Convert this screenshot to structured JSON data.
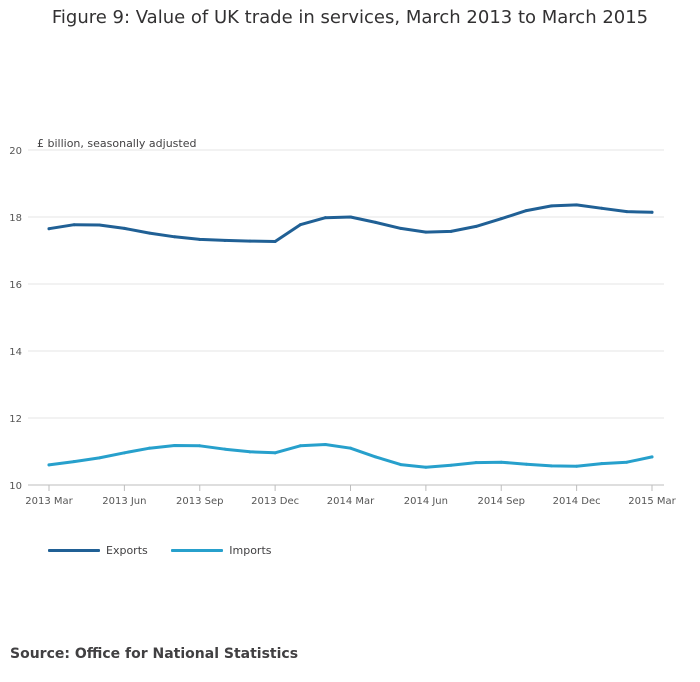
{
  "title": "Figure 9: Value of UK trade in services, March 2013 to March 2015",
  "source": "Source: Office for National Statistics",
  "chart_data": {
    "type": "line",
    "title": "Figure 9: Value of UK trade in services, March 2013 to March 2015",
    "ylabel": "£ billion, seasonally adjusted",
    "xlabel": "",
    "ylim": [
      10,
      20
    ],
    "yticks": [
      "10",
      "12",
      "14",
      "16",
      "18",
      "20"
    ],
    "grid": true,
    "legend_position": "bottom-left",
    "categories": [
      "2013 Mar",
      "2013 Apr",
      "2013 May",
      "2013 Jun",
      "2013 Jul",
      "2013 Aug",
      "2013 Sep",
      "2013 Oct",
      "2013 Nov",
      "2013 Dec",
      "2014 Jan",
      "2014 Feb",
      "2014 Mar",
      "2014 Apr",
      "2014 May",
      "2014 Jun",
      "2014 Jul",
      "2014 Aug",
      "2014 Sep",
      "2014 Oct",
      "2014 Nov",
      "2014 Dec",
      "2015 Jan",
      "2015 Feb",
      "2015 Mar"
    ],
    "x_tick_labels": [
      "2013 Mar",
      "2013 Jun",
      "2013 Sep",
      "2013 Dec",
      "2014 Mar",
      "2014 Jun",
      "2014 Sep",
      "2014 Dec",
      "2015 Mar"
    ],
    "x_tick_every": 3,
    "series": [
      {
        "name": "Exports",
        "color": "#206095",
        "values": [
          17.65,
          17.77,
          17.76,
          17.66,
          17.52,
          17.41,
          17.33,
          17.3,
          17.28,
          17.27,
          17.77,
          17.98,
          18.0,
          17.84,
          17.66,
          17.55,
          17.57,
          17.72,
          17.95,
          18.19,
          18.33,
          18.36,
          18.26,
          18.16,
          18.14
        ]
      },
      {
        "name": "Imports",
        "color": "#27a0cc",
        "values": [
          10.6,
          10.7,
          10.81,
          10.96,
          11.1,
          11.18,
          11.17,
          11.07,
          10.99,
          10.96,
          11.17,
          11.21,
          11.1,
          10.84,
          10.61,
          10.53,
          10.59,
          10.67,
          10.68,
          10.62,
          10.57,
          10.56,
          10.64,
          10.68,
          10.84
        ]
      }
    ]
  }
}
